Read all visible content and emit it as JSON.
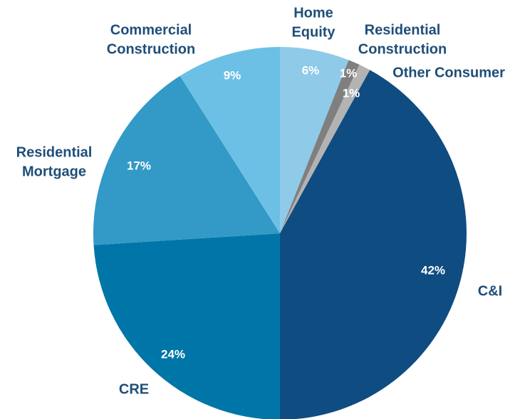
{
  "chart_data": {
    "type": "pie",
    "categories": [
      "Home Equity",
      "Residential Construction",
      "Other Consumer",
      "C&I",
      "CRE",
      "Residential Mortgage",
      "Commercial Construction"
    ],
    "values": [
      6,
      1,
      1,
      42,
      24,
      17,
      9
    ],
    "value_labels": [
      "6%",
      "1%",
      "1%",
      "42%",
      "24%",
      "17%",
      "9%"
    ],
    "colors": [
      "#8fcbe8",
      "#7f7f7f",
      "#b3b3b3",
      "#0f4c81",
      "#0076a8",
      "#3399c6",
      "#6cc0e5"
    ]
  }
}
